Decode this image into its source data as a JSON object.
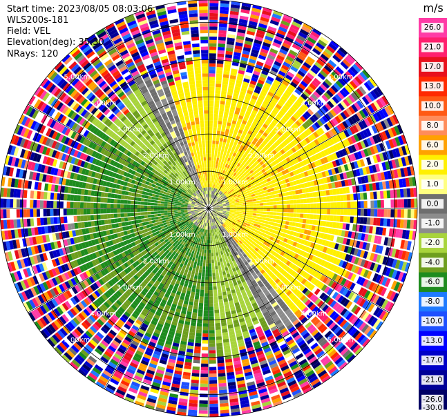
{
  "header": {
    "start_time": "Start time: 2023/08/05 08:03:06",
    "instrument": "WLS200s-181",
    "field": "Field: VEL",
    "elevation": "Elevation(deg): 35.30",
    "nrays": "NRays: 120"
  },
  "chart_data": {
    "type": "heatmap",
    "projection": "polar-ppi",
    "field": "VEL",
    "nrays": 120,
    "range_rings_km": [
      1.0,
      2.0,
      3.0,
      4.0,
      5.0
    ],
    "ring_labels": [
      "1.00km",
      "2.00km",
      "3.00km",
      "4.00km",
      "5.00km"
    ],
    "max_range_km": 5.6,
    "azimuth_lines_deg": [
      0,
      30,
      60,
      90,
      120,
      150
    ],
    "colorbar": {
      "unit": "m/s",
      "ticks": [
        "26.0",
        "21.0",
        "17.0",
        "13.0",
        "10.0",
        "8.0",
        "6.0",
        "2.0",
        "1.0",
        "0.0",
        "-1.0",
        "-2.0",
        "-4.0",
        "-6.0",
        "-8.0",
        "-10.0",
        "-13.0",
        "-17.0",
        "-21.0",
        "-26.0",
        "-30.0"
      ],
      "colors": [
        "#ff3ba6",
        "#ff1f6e",
        "#e8101c",
        "#ff2a00",
        "#ff5a14",
        "#ff8c5a",
        "#ffa100",
        "#fff000",
        "#ffff80",
        "#6e6e6e",
        "#8c8c8c",
        "#a8d43c",
        "#6e9e1e",
        "#1e8c1e",
        "#1e7aff",
        "#1e50ff",
        "#0000ff",
        "#0000c8",
        "#000096",
        "#000064"
      ]
    },
    "velocity_structure": [
      {
        "region": "west-southwest",
        "range_km": [
          0.3,
          3.5
        ],
        "values_ms": [
          -6.0,
          -4.0,
          -2.0
        ]
      },
      {
        "region": "east-northeast",
        "range_km": [
          0.3,
          3.8
        ],
        "values_ms": [
          2.0,
          6.0
        ]
      },
      {
        "region": "zero-line",
        "range_km": [
          0.3,
          3.6
        ],
        "values_ms": [
          0.0,
          -1.0
        ]
      },
      {
        "region": "outer-noise",
        "range_km": [
          3.6,
          5.6
        ],
        "values_ms": [
          -30.0,
          26.0
        ]
      }
    ]
  }
}
